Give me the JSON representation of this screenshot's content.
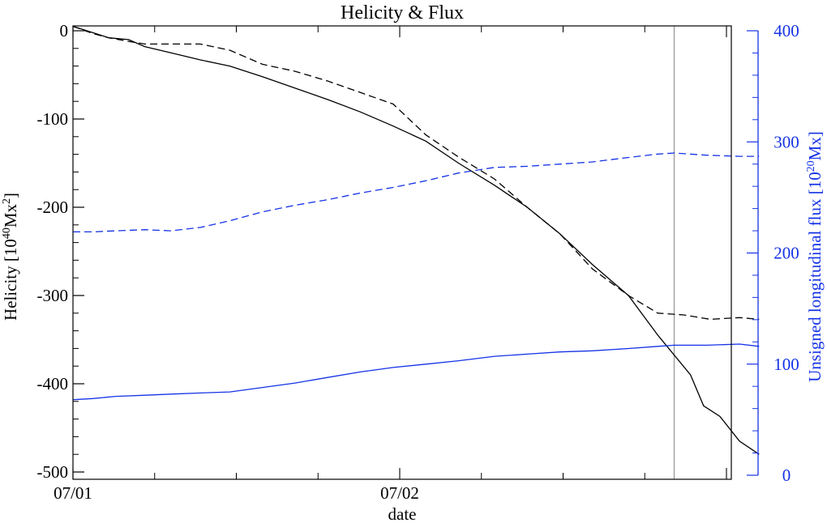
{
  "colors": {
    "helicity_axis": "#000000",
    "flux_axis": "#1432e6",
    "marker": "#999999",
    "background": "#ffffff"
  },
  "chart_data": {
    "type": "line",
    "title": "Helicity & Flux",
    "xlabel": "date",
    "x_tick_labels": [
      "07/01",
      "07/02"
    ],
    "x_range_days": [
      0,
      1.98
    ],
    "left_axis": {
      "label_base": "Helicity [10",
      "label_exp": "40",
      "label_mid": "Mx",
      "label_exp2": "2",
      "label_end": "]",
      "range": [
        -510,
        5
      ],
      "ticks": [
        0,
        -100,
        -200,
        -300,
        -400,
        -500
      ],
      "tick_labels": [
        "0",
        "-100",
        "-200",
        "-300",
        "-400",
        "-500"
      ]
    },
    "right_axis": {
      "label_base": "Unsigned longitudinal flux [10",
      "label_exp": "20",
      "label_end": "Mx]",
      "range": [
        0,
        400
      ],
      "ticks": [
        0,
        100,
        200,
        300,
        400
      ],
      "tick_labels": [
        "0",
        "100",
        "200",
        "300",
        "400"
      ]
    },
    "marker_x_days": 1.84,
    "series": [
      {
        "axis": "left",
        "color": "#000000",
        "dash": "solid",
        "points": [
          [
            0.0,
            5
          ],
          [
            0.06,
            -2
          ],
          [
            0.11,
            -8
          ],
          [
            0.17,
            -10
          ],
          [
            0.22,
            -18
          ],
          [
            0.3,
            -25
          ],
          [
            0.39,
            -33
          ],
          [
            0.48,
            -40
          ],
          [
            0.58,
            -52
          ],
          [
            0.68,
            -65
          ],
          [
            0.78,
            -78
          ],
          [
            0.88,
            -92
          ],
          [
            0.98,
            -108
          ],
          [
            1.08,
            -125
          ],
          [
            1.18,
            -150
          ],
          [
            1.29,
            -175
          ],
          [
            1.39,
            -200
          ],
          [
            1.49,
            -230
          ],
          [
            1.59,
            -265
          ],
          [
            1.7,
            -300
          ],
          [
            1.79,
            -345
          ],
          [
            1.89,
            -390
          ],
          [
            1.93,
            -425
          ],
          [
            1.98,
            -437
          ],
          [
            2.04,
            -465
          ],
          [
            2.1,
            -480
          ]
        ]
      },
      {
        "axis": "left",
        "color": "#000000",
        "dash": "dashed",
        "points": [
          [
            0.0,
            5
          ],
          [
            0.06,
            -3
          ],
          [
            0.11,
            -8
          ],
          [
            0.17,
            -12
          ],
          [
            0.22,
            -15
          ],
          [
            0.3,
            -15
          ],
          [
            0.39,
            -15
          ],
          [
            0.48,
            -22
          ],
          [
            0.58,
            -38
          ],
          [
            0.68,
            -46
          ],
          [
            0.78,
            -57
          ],
          [
            0.88,
            -70
          ],
          [
            0.98,
            -83
          ],
          [
            1.08,
            -118
          ],
          [
            1.18,
            -143
          ],
          [
            1.29,
            -168
          ],
          [
            1.39,
            -200
          ],
          [
            1.49,
            -230
          ],
          [
            1.59,
            -270
          ],
          [
            1.7,
            -300
          ],
          [
            1.79,
            -320
          ],
          [
            1.87,
            -322
          ],
          [
            1.95,
            -327
          ],
          [
            2.04,
            -325
          ],
          [
            2.1,
            -327
          ]
        ]
      },
      {
        "axis": "right",
        "color": "#1432e6",
        "dash": "solid",
        "points": [
          [
            0.0,
            68
          ],
          [
            0.06,
            69
          ],
          [
            0.13,
            71
          ],
          [
            0.22,
            72
          ],
          [
            0.3,
            73
          ],
          [
            0.39,
            74
          ],
          [
            0.48,
            75
          ],
          [
            0.58,
            79
          ],
          [
            0.68,
            83
          ],
          [
            0.78,
            88
          ],
          [
            0.88,
            93
          ],
          [
            0.98,
            97
          ],
          [
            1.08,
            100
          ],
          [
            1.18,
            103
          ],
          [
            1.29,
            107
          ],
          [
            1.39,
            109
          ],
          [
            1.49,
            111
          ],
          [
            1.59,
            112
          ],
          [
            1.7,
            114
          ],
          [
            1.79,
            116
          ],
          [
            1.84,
            117
          ],
          [
            1.94,
            117
          ],
          [
            2.04,
            118
          ],
          [
            2.1,
            116
          ]
        ]
      },
      {
        "axis": "right",
        "color": "#1432e6",
        "dash": "dashed",
        "points": [
          [
            0.0,
            219
          ],
          [
            0.06,
            219
          ],
          [
            0.13,
            220
          ],
          [
            0.22,
            221
          ],
          [
            0.3,
            220
          ],
          [
            0.39,
            223
          ],
          [
            0.48,
            229
          ],
          [
            0.58,
            237
          ],
          [
            0.68,
            243
          ],
          [
            0.78,
            248
          ],
          [
            0.88,
            254
          ],
          [
            0.98,
            259
          ],
          [
            1.08,
            265
          ],
          [
            1.18,
            272
          ],
          [
            1.29,
            277
          ],
          [
            1.39,
            278
          ],
          [
            1.49,
            280
          ],
          [
            1.59,
            282
          ],
          [
            1.7,
            286
          ],
          [
            1.79,
            289
          ],
          [
            1.84,
            290
          ],
          [
            1.94,
            288
          ],
          [
            2.04,
            287
          ],
          [
            2.1,
            287
          ]
        ]
      }
    ]
  }
}
